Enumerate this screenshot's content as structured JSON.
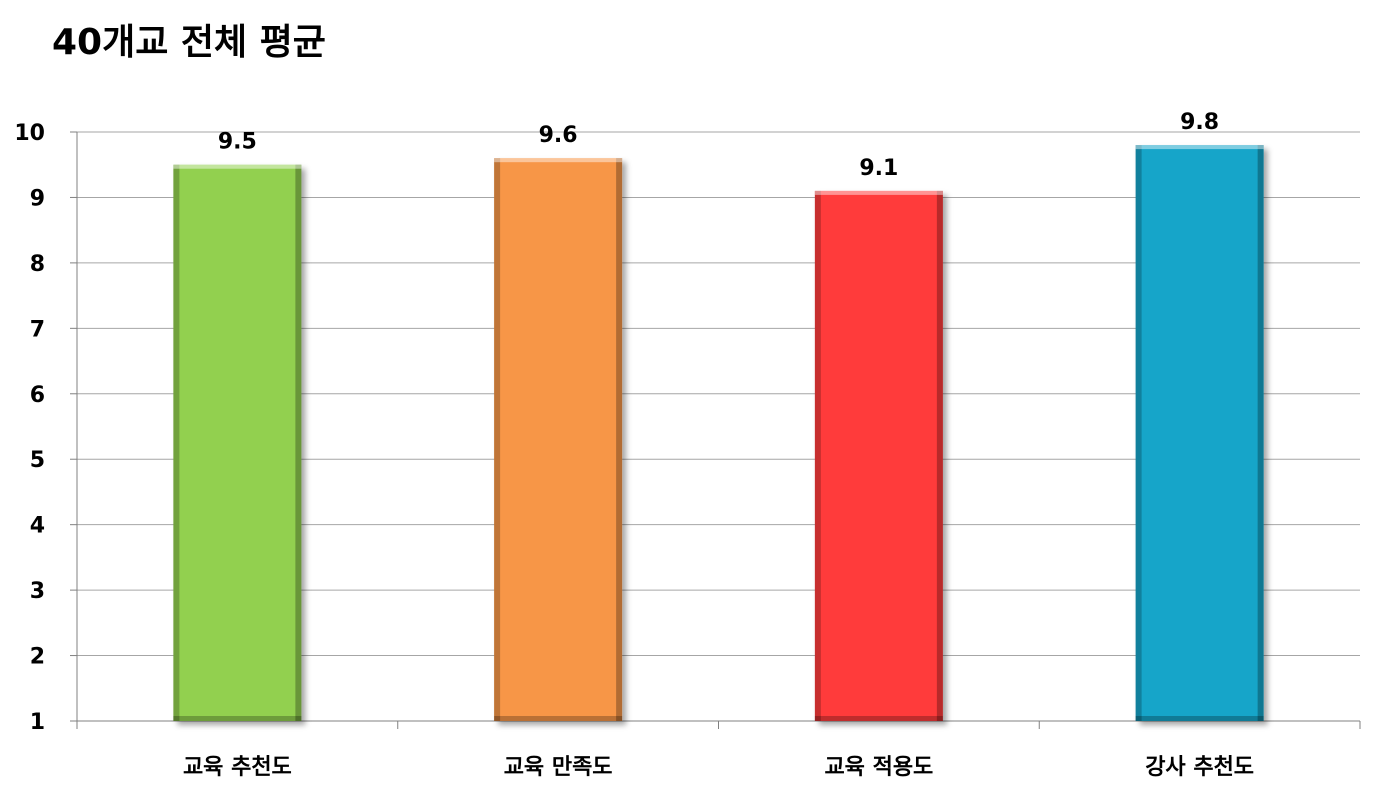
{
  "chart_data": {
    "type": "bar",
    "title": "40개교 전체 평균",
    "categories": [
      "교육 추천도",
      "교육 만족도",
      "교육 적용도",
      "강사 추천도"
    ],
    "values": [
      9.5,
      9.6,
      9.1,
      9.8
    ],
    "data_labels": [
      "9.5",
      "9.6",
      "9.1",
      "9.8"
    ],
    "colors": [
      "#92d050",
      "#f79646",
      "#ff3b3b",
      "#17a5c9"
    ],
    "ylim": [
      1,
      10
    ],
    "yticks": [
      1,
      2,
      3,
      4,
      5,
      6,
      7,
      8,
      9,
      10
    ],
    "grid": true,
    "legend": "none",
    "xlabel": "",
    "ylabel": ""
  }
}
